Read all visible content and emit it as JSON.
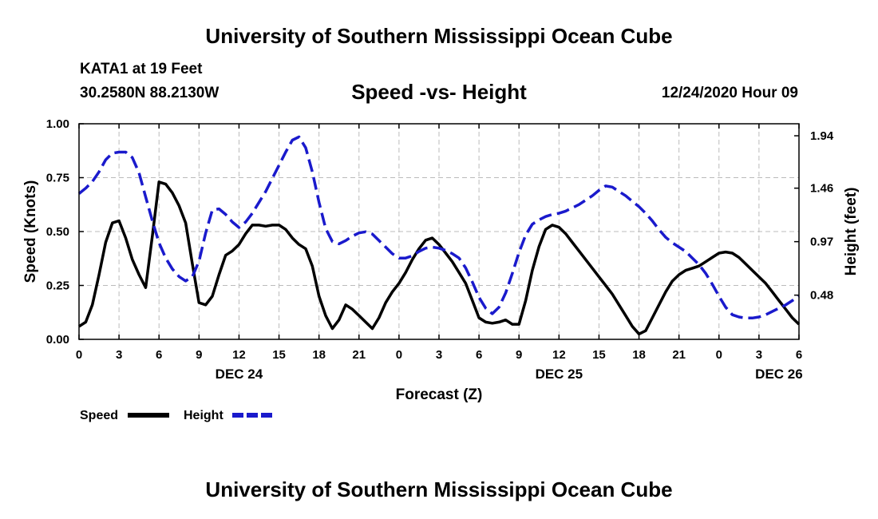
{
  "header": {
    "title": "University of Southern Mississippi Ocean Cube",
    "station": "KATA1 at 19 Feet",
    "coordinates": "30.2580N 88.2130W",
    "subtitle": "Speed -vs- Height",
    "datetime": "12/24/2020 Hour 09"
  },
  "footer": {
    "title": "University of Southern Mississippi Ocean Cube"
  },
  "colors": {
    "speed": "#000000",
    "height": "#1a1acc",
    "grid": "#bbbbbb"
  },
  "chart_data": {
    "type": "line",
    "title": "Speed -vs- Height",
    "xlabel": "Forecast (Z)",
    "ylabel": "Speed (Knots)",
    "y2label": "Height (feet)",
    "xlim": [
      0,
      54
    ],
    "ylim": [
      0,
      1.0
    ],
    "y2lim": [
      0.075,
      2.05
    ],
    "grid": true,
    "x_tick_values": [
      0,
      3,
      6,
      9,
      12,
      15,
      18,
      21,
      24,
      27,
      30,
      33,
      36,
      39,
      42,
      45,
      48,
      51,
      54
    ],
    "x_tick_labels": [
      "0",
      "3",
      "6",
      "9",
      "12",
      "15",
      "18",
      "21",
      "0",
      "3",
      "6",
      "9",
      "12",
      "15",
      "18",
      "21",
      "0",
      "3",
      "6"
    ],
    "day_labels": [
      {
        "x": 12,
        "label": "DEC 24"
      },
      {
        "x": 36,
        "label": "DEC 25"
      },
      {
        "x": 52.5,
        "label": "DEC 26"
      }
    ],
    "y_ticks": [
      0.0,
      0.25,
      0.5,
      0.75,
      1.0
    ],
    "y_tick_labels": [
      "0.00",
      "0.25",
      "0.50",
      "0.75",
      "1.00"
    ],
    "y2_ticks": [
      0.48,
      0.97,
      1.46,
      1.94
    ],
    "y2_tick_labels": [
      "0.48",
      "0.97",
      "1.46",
      "1.94"
    ],
    "legend_placement": "bottom-left",
    "series": [
      {
        "name": "Speed",
        "axis": "left",
        "style": "solid",
        "x": [
          0,
          0.5,
          1,
          1.5,
          2,
          2.5,
          3,
          3.5,
          4,
          4.5,
          5,
          5.5,
          6,
          6.5,
          7,
          7.5,
          8,
          8.5,
          9,
          9.5,
          10,
          10.5,
          11,
          11.5,
          12,
          12.5,
          13,
          13.5,
          14,
          14.5,
          15,
          15.5,
          16,
          16.5,
          17,
          17.5,
          18,
          18.5,
          19,
          19.5,
          20,
          20.5,
          21,
          21.5,
          22,
          22.5,
          23,
          23.5,
          24,
          24.5,
          25,
          25.5,
          26,
          26.5,
          27,
          27.5,
          28,
          28.5,
          29,
          29.5,
          30,
          30.5,
          31,
          31.5,
          32,
          32.5,
          33,
          33.5,
          34,
          34.5,
          35,
          35.5,
          36,
          36.5,
          37,
          37.5,
          38,
          38.5,
          39,
          39.5,
          40,
          40.5,
          41,
          41.5,
          42,
          42.5,
          43,
          43.5,
          44,
          44.5,
          45,
          45.5,
          46,
          46.5,
          47,
          47.5,
          48,
          48.5,
          49,
          49.5,
          50,
          50.5,
          51,
          51.5,
          52,
          52.5,
          53,
          53.5,
          54
        ],
        "values": [
          0.06,
          0.08,
          0.16,
          0.3,
          0.45,
          0.54,
          0.55,
          0.47,
          0.37,
          0.3,
          0.24,
          0.48,
          0.73,
          0.72,
          0.68,
          0.62,
          0.54,
          0.35,
          0.17,
          0.16,
          0.2,
          0.3,
          0.39,
          0.41,
          0.44,
          0.49,
          0.53,
          0.53,
          0.525,
          0.53,
          0.53,
          0.51,
          0.47,
          0.44,
          0.42,
          0.34,
          0.2,
          0.11,
          0.05,
          0.09,
          0.16,
          0.14,
          0.11,
          0.08,
          0.05,
          0.1,
          0.17,
          0.22,
          0.26,
          0.31,
          0.37,
          0.42,
          0.46,
          0.47,
          0.44,
          0.4,
          0.36,
          0.31,
          0.26,
          0.18,
          0.1,
          0.08,
          0.075,
          0.08,
          0.09,
          0.07,
          0.07,
          0.18,
          0.32,
          0.43,
          0.51,
          0.53,
          0.52,
          0.49,
          0.45,
          0.41,
          0.37,
          0.33,
          0.29,
          0.25,
          0.21,
          0.16,
          0.11,
          0.06,
          0.025,
          0.04,
          0.1,
          0.16,
          0.22,
          0.27,
          0.3,
          0.32,
          0.33,
          0.34,
          0.36,
          0.38,
          0.4,
          0.405,
          0.4,
          0.38,
          0.35,
          0.32,
          0.29,
          0.26,
          0.22,
          0.18,
          0.14,
          0.1,
          0.07
        ]
      },
      {
        "name": "Height",
        "axis": "right",
        "style": "dashed",
        "x": [
          0,
          0.5,
          1,
          1.5,
          2,
          2.5,
          3,
          3.5,
          4,
          4.5,
          5,
          5.5,
          6,
          6.5,
          7,
          7.5,
          8,
          8.5,
          9,
          9.5,
          10,
          10.5,
          11,
          11.5,
          12,
          12.5,
          13,
          13.5,
          14,
          14.5,
          15,
          15.5,
          16,
          16.5,
          17,
          17.5,
          18,
          18.5,
          19,
          19.5,
          20,
          20.5,
          21,
          21.5,
          22,
          22.5,
          23,
          23.5,
          24,
          24.5,
          25,
          25.5,
          26,
          26.5,
          27,
          27.5,
          28,
          28.5,
          29,
          29.5,
          30,
          30.5,
          31,
          31.5,
          32,
          32.5,
          33,
          33.5,
          34,
          34.5,
          35,
          35.5,
          36,
          36.5,
          37,
          37.5,
          38,
          38.5,
          39,
          39.5,
          40,
          40.5,
          41,
          41.5,
          42,
          42.5,
          43,
          43.5,
          44,
          44.5,
          45,
          45.5,
          46,
          46.5,
          47,
          47.5,
          48,
          48.5,
          49,
          49.5,
          50,
          50.5,
          51,
          51.5,
          52,
          52.5,
          53,
          53.5,
          54
        ],
        "values": [
          1.41,
          1.46,
          1.52,
          1.61,
          1.72,
          1.78,
          1.79,
          1.79,
          1.74,
          1.6,
          1.38,
          1.16,
          0.96,
          0.82,
          0.72,
          0.65,
          0.61,
          0.65,
          0.79,
          1.05,
          1.26,
          1.27,
          1.22,
          1.15,
          1.1,
          1.15,
          1.23,
          1.33,
          1.43,
          1.55,
          1.67,
          1.79,
          1.9,
          1.93,
          1.83,
          1.61,
          1.33,
          1.09,
          0.97,
          0.95,
          0.98,
          1.02,
          1.05,
          1.06,
          1.04,
          0.98,
          0.92,
          0.86,
          0.82,
          0.82,
          0.84,
          0.88,
          0.91,
          0.92,
          0.91,
          0.89,
          0.86,
          0.82,
          0.73,
          0.6,
          0.46,
          0.36,
          0.31,
          0.37,
          0.5,
          0.68,
          0.87,
          1.03,
          1.13,
          1.17,
          1.2,
          1.22,
          1.23,
          1.25,
          1.28,
          1.31,
          1.35,
          1.39,
          1.44,
          1.48,
          1.47,
          1.43,
          1.39,
          1.34,
          1.29,
          1.23,
          1.16,
          1.08,
          1.01,
          0.96,
          0.92,
          0.88,
          0.82,
          0.76,
          0.68,
          0.58,
          0.47,
          0.37,
          0.3,
          0.28,
          0.27,
          0.27,
          0.28,
          0.3,
          0.33,
          0.36,
          0.39,
          0.43,
          0.47
        ]
      }
    ]
  }
}
